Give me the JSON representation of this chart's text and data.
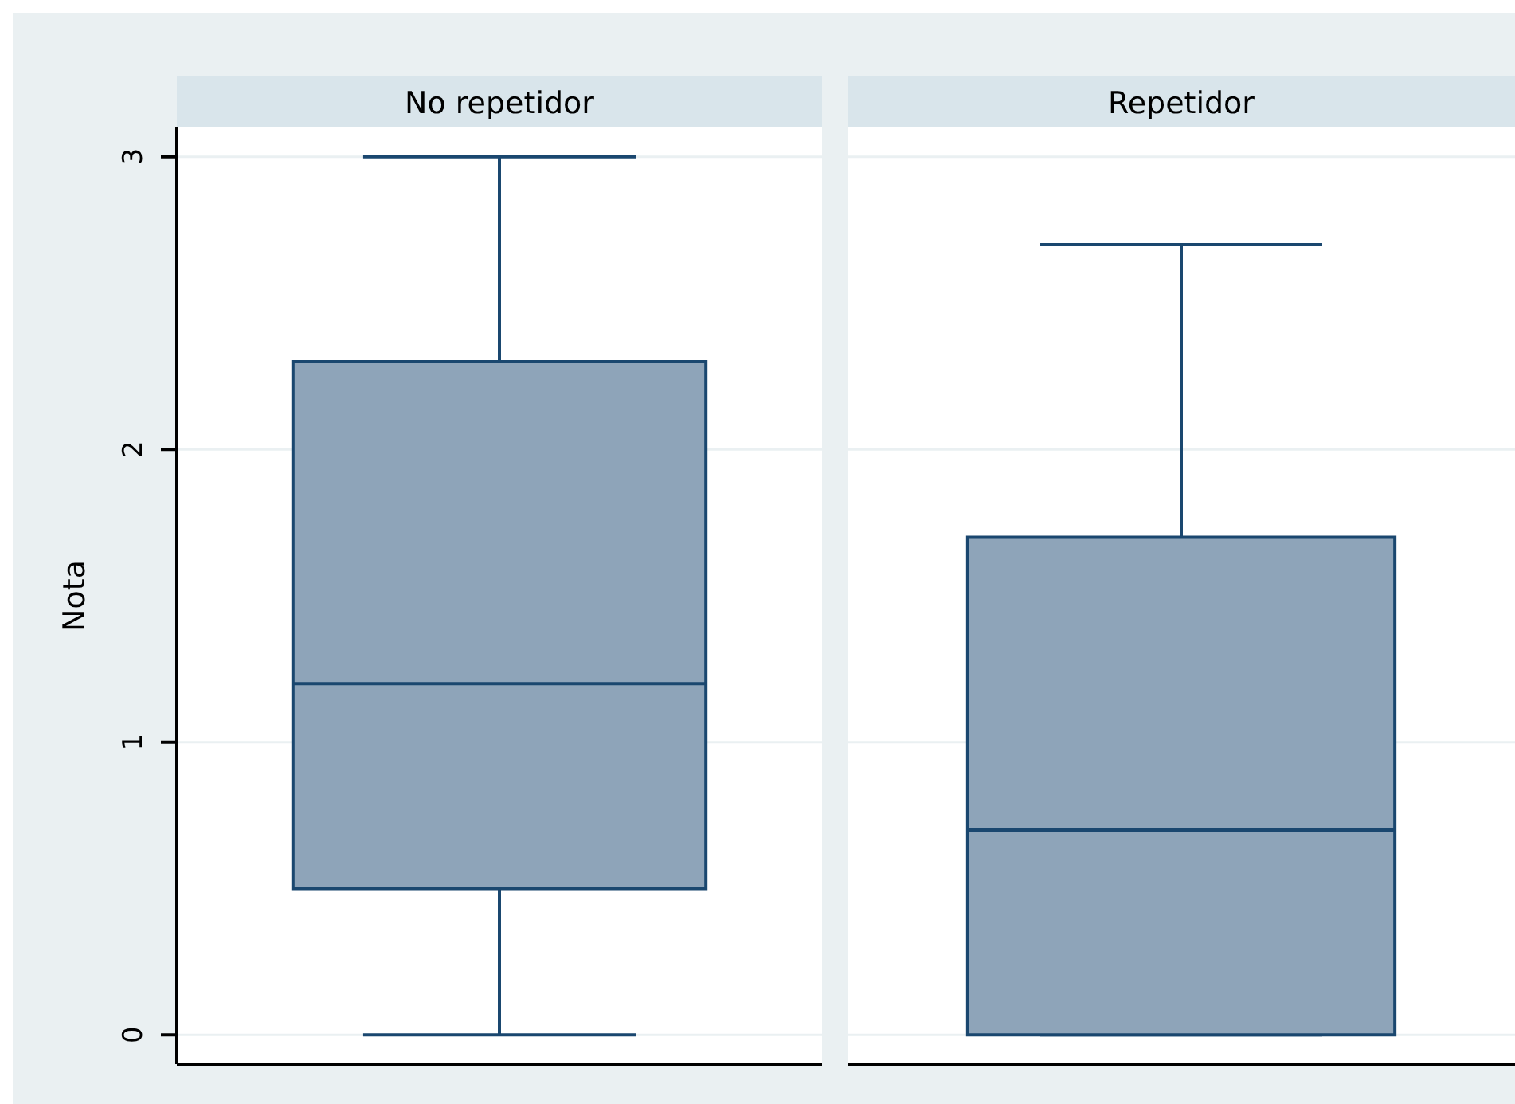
{
  "chart_data": {
    "type": "box",
    "ylabel": "Nota",
    "categories": [
      "No repetidor",
      "Repetidor"
    ],
    "color": "#8ea4b9",
    "boxes": [
      {
        "low": 0,
        "q1": 0.5,
        "median": 1.2,
        "q3": 2.3,
        "high": 3
      },
      {
        "low": 0,
        "q1": 0,
        "median": 0.7,
        "q3": 1.7,
        "high": 2.7
      }
    ],
    "ylim": [
      -0.1,
      3.1
    ],
    "yticks": [
      0,
      1,
      2,
      3
    ],
    "grid": "y"
  }
}
